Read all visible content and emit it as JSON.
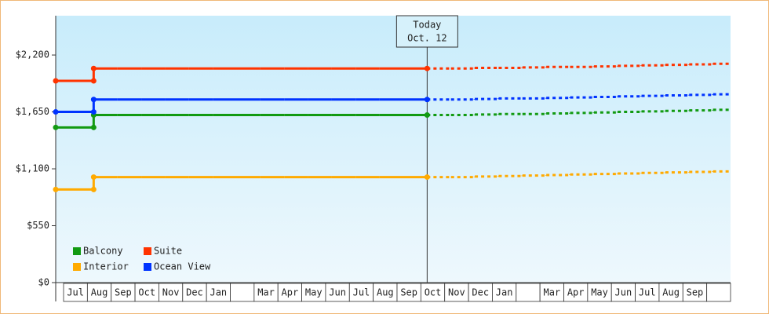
{
  "chart_data": {
    "type": "step-line",
    "annotation": [
      "Today",
      "Oct. 12"
    ],
    "categories": [
      "Jul",
      "Aug",
      "Sep",
      "Oct",
      "Nov",
      "Dec",
      "Jan",
      null,
      "Mar",
      "Apr",
      "May",
      "Jun",
      "Jul",
      "Aug",
      "Sep",
      "Oct",
      "Nov",
      "Dec",
      "Jan",
      null,
      "Mar",
      "Apr",
      "May",
      "Jun",
      "Jul",
      "Aug",
      "Sep",
      null
    ],
    "ylim": [
      0,
      2580
    ],
    "yticks": [
      {
        "value": 0,
        "label": "$0"
      },
      {
        "value": 550,
        "label": "$550"
      },
      {
        "value": 1100,
        "label": "$1,100"
      },
      {
        "value": 1650,
        "label": "$1,650"
      },
      {
        "value": 2200,
        "label": "$2,200"
      }
    ],
    "series": [
      {
        "name": "Balcony",
        "color": "#129a12",
        "values": [
          1500,
          1620,
          1620,
          1620,
          1620,
          1620,
          1620,
          1620,
          1620,
          1620,
          1620,
          1620,
          1620,
          1620,
          1620,
          1620,
          null,
          null,
          null,
          null,
          null,
          null,
          null,
          null,
          null,
          null,
          null,
          null
        ],
        "forecast": [
          null,
          null,
          null,
          null,
          null,
          null,
          null,
          null,
          null,
          null,
          null,
          null,
          null,
          null,
          null,
          1620,
          1620,
          1625,
          1630,
          1630,
          1635,
          1640,
          1645,
          1650,
          1655,
          1660,
          1665,
          1670
        ]
      },
      {
        "name": "Suite",
        "color": "#ff3300",
        "values": [
          1950,
          2070,
          2070,
          2070,
          2070,
          2070,
          2070,
          2070,
          2070,
          2070,
          2070,
          2070,
          2070,
          2070,
          2070,
          2070,
          null,
          null,
          null,
          null,
          null,
          null,
          null,
          null,
          null,
          null,
          null,
          null
        ],
        "forecast": [
          null,
          null,
          null,
          null,
          null,
          null,
          null,
          null,
          null,
          null,
          null,
          null,
          null,
          null,
          null,
          2070,
          2070,
          2075,
          2075,
          2080,
          2085,
          2085,
          2090,
          2095,
          2100,
          2105,
          2110,
          2115
        ]
      },
      {
        "name": "Interior",
        "color": "#ffaa00",
        "values": [
          900,
          1020,
          1020,
          1020,
          1020,
          1020,
          1020,
          1020,
          1020,
          1020,
          1020,
          1020,
          1020,
          1020,
          1020,
          1020,
          null,
          null,
          null,
          null,
          null,
          null,
          null,
          null,
          null,
          null,
          null,
          null
        ],
        "forecast": [
          null,
          null,
          null,
          null,
          null,
          null,
          null,
          null,
          null,
          null,
          null,
          null,
          null,
          null,
          null,
          1020,
          1020,
          1025,
          1030,
          1035,
          1040,
          1045,
          1050,
          1055,
          1060,
          1065,
          1070,
          1075
        ]
      },
      {
        "name": "Ocean View",
        "color": "#0033ff",
        "values": [
          1650,
          1770,
          1770,
          1770,
          1770,
          1770,
          1770,
          1770,
          1770,
          1770,
          1770,
          1770,
          1770,
          1770,
          1770,
          1770,
          null,
          null,
          null,
          null,
          null,
          null,
          null,
          null,
          null,
          null,
          null,
          null
        ],
        "forecast": [
          null,
          null,
          null,
          null,
          null,
          null,
          null,
          null,
          null,
          null,
          null,
          null,
          null,
          null,
          null,
          1770,
          1770,
          1775,
          1780,
          1780,
          1785,
          1790,
          1795,
          1800,
          1805,
          1810,
          1815,
          1820
        ]
      }
    ]
  }
}
